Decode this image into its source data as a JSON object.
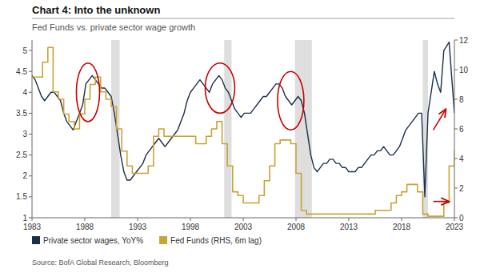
{
  "chart_data": {
    "type": "line",
    "title": "Chart 4: Into the unknown",
    "subtitle": "Fed Funds vs. private sector wage growth",
    "source": "Source: BofA Global Research, Bloomberg",
    "xlim": [
      1983,
      2023
    ],
    "xticks": [
      1983,
      1988,
      1993,
      1998,
      2003,
      2008,
      2013,
      2018,
      2023
    ],
    "ylim": [
      1.0,
      5.25
    ],
    "yticks": [
      1,
      1.5,
      2,
      2.5,
      3,
      3.5,
      4,
      4.5,
      5
    ],
    "y2lim": [
      0,
      12
    ],
    "y2ticks": [
      0,
      2,
      4,
      6,
      8,
      10,
      12
    ],
    "grid": false,
    "legend": "lower-left",
    "bands": {
      "color": "#d0d0d0",
      "ranges": [
        [
          1990.5,
          1991.3
        ],
        [
          2001.2,
          2001.9
        ],
        [
          2007.9,
          2009.5
        ],
        [
          2020.0,
          2020.5
        ]
      ]
    },
    "series": [
      {
        "name": "Private sector wages, YoY%",
        "color": "#1a2e4a",
        "type": "line",
        "x": [
          1983.0,
          1983.3,
          1983.6,
          1983.9,
          1984.2,
          1984.5,
          1984.8,
          1985.1,
          1985.4,
          1985.7,
          1986.0,
          1986.3,
          1986.6,
          1986.9,
          1987.2,
          1987.5,
          1987.8,
          1988.1,
          1988.4,
          1988.7,
          1989.0,
          1989.3,
          1989.6,
          1989.9,
          1990.2,
          1990.5,
          1990.8,
          1991.1,
          1991.4,
          1991.7,
          1992.0,
          1992.3,
          1992.6,
          1992.9,
          1993.2,
          1993.5,
          1993.8,
          1994.1,
          1994.4,
          1994.7,
          1995.0,
          1995.3,
          1995.6,
          1995.9,
          1996.2,
          1996.5,
          1996.8,
          1997.1,
          1997.4,
          1997.7,
          1998.0,
          1998.3,
          1998.6,
          1998.9,
          1999.2,
          1999.5,
          1999.8,
          2000.1,
          2000.4,
          2000.7,
          2001.0,
          2001.3,
          2001.6,
          2001.9,
          2002.2,
          2002.5,
          2002.8,
          2003.1,
          2003.4,
          2003.7,
          2004.0,
          2004.3,
          2004.6,
          2004.9,
          2005.2,
          2005.5,
          2005.8,
          2006.1,
          2006.4,
          2006.7,
          2007.0,
          2007.3,
          2007.6,
          2007.9,
          2008.2,
          2008.5,
          2008.8,
          2009.1,
          2009.4,
          2009.7,
          2010.0,
          2010.3,
          2010.6,
          2010.9,
          2011.2,
          2011.5,
          2011.8,
          2012.1,
          2012.4,
          2012.7,
          2013.0,
          2013.3,
          2013.6,
          2013.9,
          2014.2,
          2014.5,
          2014.8,
          2015.1,
          2015.4,
          2015.7,
          2016.0,
          2016.3,
          2016.6,
          2016.9,
          2017.2,
          2017.5,
          2017.8,
          2018.1,
          2018.4,
          2018.7,
          2019.0,
          2019.3,
          2019.6,
          2019.9,
          2020.2,
          2020.5,
          2020.8,
          2021.1,
          2021.4,
          2021.7,
          2022.0,
          2022.5,
          2023.0
        ],
        "values": [
          4.4,
          4.3,
          4.1,
          3.9,
          3.8,
          3.9,
          4.0,
          4.0,
          3.9,
          3.8,
          3.5,
          3.3,
          3.2,
          3.1,
          3.3,
          3.5,
          3.7,
          4.2,
          4.3,
          4.4,
          4.3,
          4.2,
          4.1,
          4.1,
          4.0,
          3.9,
          3.5,
          3.0,
          2.5,
          2.1,
          1.9,
          1.9,
          2.0,
          2.1,
          2.2,
          2.3,
          2.5,
          2.6,
          2.7,
          2.8,
          2.9,
          2.8,
          2.7,
          2.8,
          2.9,
          3.0,
          3.1,
          3.3,
          3.5,
          3.8,
          4.0,
          4.1,
          4.2,
          4.3,
          4.2,
          4.1,
          4.0,
          4.2,
          4.3,
          4.4,
          4.3,
          4.1,
          4.0,
          3.8,
          3.6,
          3.5,
          3.4,
          3.5,
          3.5,
          3.5,
          3.6,
          3.7,
          3.8,
          3.9,
          3.9,
          4.0,
          4.1,
          4.2,
          4.2,
          4.1,
          3.9,
          3.8,
          3.7,
          3.8,
          3.9,
          3.8,
          3.5,
          3.0,
          2.5,
          2.2,
          2.1,
          2.2,
          2.3,
          2.3,
          2.4,
          2.4,
          2.3,
          2.3,
          2.2,
          2.2,
          2.1,
          2.1,
          2.1,
          2.2,
          2.2,
          2.3,
          2.4,
          2.5,
          2.5,
          2.6,
          2.6,
          2.7,
          2.6,
          2.5,
          2.5,
          2.6,
          2.7,
          2.9,
          3.1,
          3.2,
          3.3,
          3.4,
          3.5,
          3.5,
          1.5,
          3.5,
          4.0,
          4.5,
          4.2,
          4.0,
          5.0,
          5.2,
          3.5
        ]
      },
      {
        "name": "Fed Funds (RHS, 6m lag)",
        "color": "#c8a435",
        "type": "line",
        "line_style": "step",
        "axis": "y2",
        "x": [
          1983.0,
          1984.0,
          1984.5,
          1985.0,
          1985.5,
          1986.0,
          1986.5,
          1987.0,
          1987.5,
          1988.0,
          1988.5,
          1989.0,
          1989.5,
          1990.0,
          1990.5,
          1991.0,
          1991.5,
          1992.0,
          1992.5,
          1993.0,
          1993.5,
          1994.0,
          1994.5,
          1995.0,
          1995.5,
          1996.0,
          1997.0,
          1997.5,
          1998.0,
          1998.5,
          1999.0,
          1999.5,
          2000.0,
          2000.5,
          2001.0,
          2001.5,
          2002.0,
          2002.5,
          2003.0,
          2003.5,
          2004.0,
          2004.5,
          2005.0,
          2005.5,
          2006.0,
          2006.5,
          2007.0,
          2007.5,
          2008.0,
          2008.5,
          2009.0,
          2009.5,
          2010.0,
          2015.0,
          2015.5,
          2016.0,
          2016.5,
          2017.0,
          2017.5,
          2018.0,
          2018.5,
          2019.0,
          2019.5,
          2020.0,
          2020.5,
          2022.0,
          2022.5,
          2023.0
        ],
        "values": [
          9.5,
          10.5,
          11.5,
          8.5,
          8.0,
          7.0,
          6.5,
          6.0,
          7.0,
          8.0,
          9.0,
          9.5,
          8.5,
          8.0,
          7.5,
          6.0,
          4.5,
          3.5,
          3.0,
          3.0,
          3.0,
          3.5,
          5.5,
          6.0,
          5.5,
          5.5,
          5.5,
          5.5,
          5.5,
          5.0,
          5.0,
          5.5,
          6.0,
          6.5,
          5.0,
          3.5,
          1.75,
          1.5,
          1.0,
          1.0,
          1.0,
          1.5,
          2.5,
          3.5,
          5.0,
          5.25,
          5.25,
          5.0,
          3.0,
          0.5,
          0.25,
          0.25,
          0.25,
          0.25,
          0.5,
          0.5,
          0.5,
          1.0,
          1.5,
          1.75,
          2.25,
          2.25,
          1.75,
          0.25,
          0.1,
          1.0,
          3.5,
          4.5
        ]
      }
    ],
    "highlights": {
      "color": "#cc0000",
      "ellipses": [
        {
          "x": 1988.3,
          "y": 4.0,
          "width": 2.2,
          "height": 1.4
        },
        {
          "x": 2000.8,
          "y": 4.1,
          "width": 2.8,
          "height": 1.2
        },
        {
          "x": 2007.5,
          "y": 3.8,
          "width": 2.5,
          "height": 1.4
        }
      ],
      "arrows": [
        {
          "from": [
            2021.0,
            3.1
          ],
          "to": [
            2022.2,
            3.6
          ],
          "axis": "y"
        },
        {
          "from": [
            2021.0,
            1.1
          ],
          "to": [
            2022.5,
            1.1
          ],
          "axis": "y2"
        }
      ]
    }
  }
}
